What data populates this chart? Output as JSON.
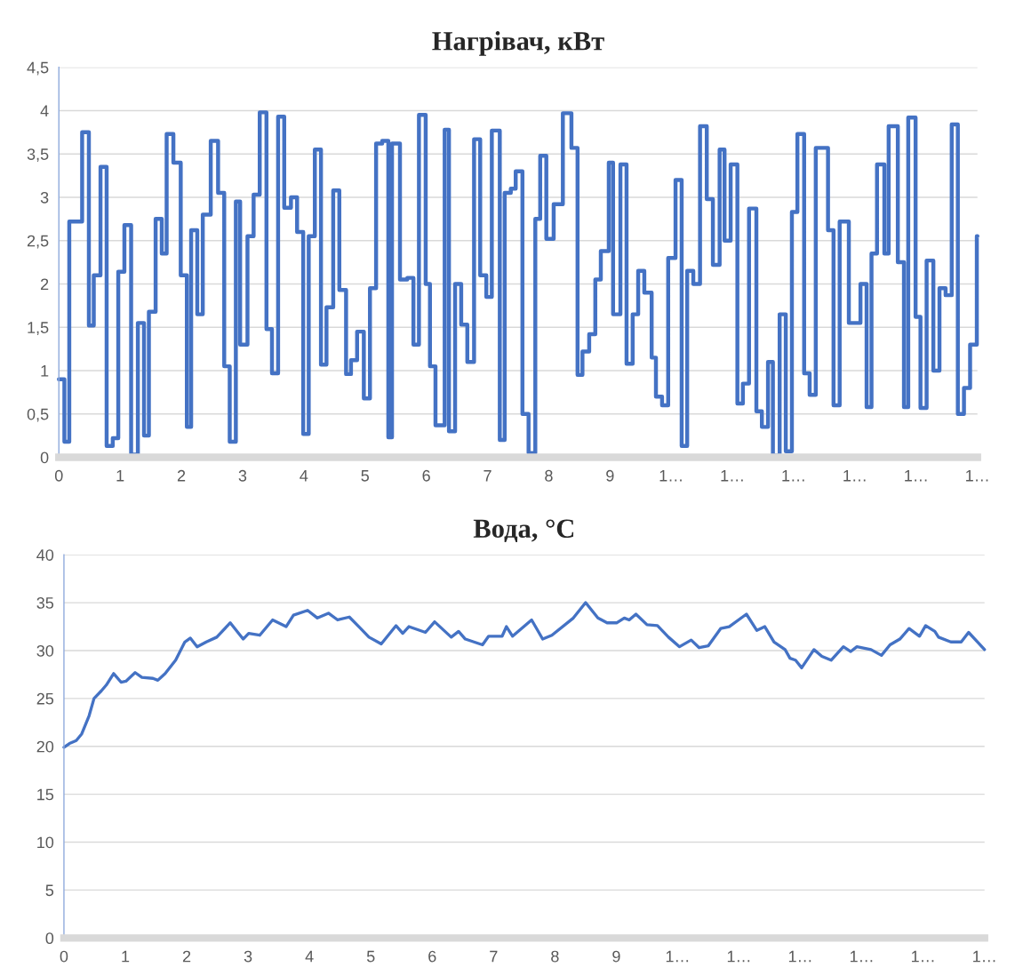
{
  "chart_data": [
    {
      "type": "step",
      "title": "Нагрівач, кВт",
      "xlim": [
        0,
        15
      ],
      "ylim": [
        0,
        4.5
      ],
      "xticks": [
        0,
        1,
        2,
        3,
        4,
        5,
        6,
        7,
        8,
        9,
        {
          "value": 10,
          "label": "1…"
        },
        {
          "value": 11,
          "label": "1…"
        },
        {
          "value": 12,
          "label": "1…"
        },
        {
          "value": 13,
          "label": "1…"
        },
        {
          "value": 14,
          "label": "1…"
        },
        {
          "value": 15,
          "label": "1…"
        }
      ],
      "yticks": [
        0,
        {
          "value": 0.5,
          "label": "0,5"
        },
        1,
        {
          "value": 1.5,
          "label": "1,5"
        },
        2,
        {
          "value": 2.5,
          "label": "2,5"
        },
        3,
        {
          "value": 3.5,
          "label": "3,5"
        },
        4,
        {
          "value": 4.5,
          "label": "4,5"
        }
      ],
      "grid": "y",
      "line_style": "solid",
      "series": [
        {
          "color": "#4472c4",
          "x": [
            0,
            0.09,
            0.17,
            0.38,
            0.49,
            0.57,
            0.68,
            0.78,
            0.88,
            0.97,
            1.07,
            1.18,
            1.29,
            1.39,
            1.47,
            1.58,
            1.68,
            1.76,
            1.87,
            1.99,
            2.09,
            2.16,
            2.26,
            2.35,
            2.48,
            2.6,
            2.7,
            2.79,
            2.89,
            2.96,
            3.08,
            3.18,
            3.28,
            3.39,
            3.48,
            3.58,
            3.68,
            3.79,
            3.89,
            3.99,
            4.08,
            4.18,
            4.28,
            4.37,
            4.48,
            4.58,
            4.69,
            4.77,
            4.87,
            4.98,
            5.08,
            5.18,
            5.28,
            5.38,
            5.44,
            5.57,
            5.69,
            5.79,
            5.88,
            5.99,
            6.06,
            6.15,
            6.3,
            6.37,
            6.47,
            6.57,
            6.67,
            6.78,
            6.88,
            6.98,
            7.07,
            7.2,
            7.28,
            7.38,
            7.46,
            7.57,
            7.67,
            7.78,
            7.86,
            7.96,
            8.08,
            8.23,
            8.37,
            8.47,
            8.55,
            8.66,
            8.76,
            8.85,
            8.98,
            9.05,
            9.17,
            9.27,
            9.37,
            9.46,
            9.56,
            9.68,
            9.75,
            9.85,
            9.95,
            10.07,
            10.17,
            10.26,
            10.36,
            10.47,
            10.58,
            10.68,
            10.79,
            10.87,
            10.97,
            11.08,
            11.17,
            11.27,
            11.39,
            11.48,
            11.58,
            11.66,
            11.77,
            11.87,
            11.97,
            12.06,
            12.17,
            12.26,
            12.36,
            12.56,
            12.65,
            12.75,
            12.9,
            13.09,
            13.19,
            13.27,
            13.36,
            13.48,
            13.55,
            13.7,
            13.8,
            13.87,
            13.99,
            14.07,
            14.17,
            14.28,
            14.38,
            14.48,
            14.58,
            14.68,
            14.78,
            14.88,
            14.99,
            15
          ],
          "values": [
            0.9,
            0.18,
            2.72,
            3.75,
            1.52,
            2.1,
            3.35,
            0.13,
            0.22,
            2.14,
            2.68,
            0.03,
            1.55,
            0.25,
            1.68,
            2.75,
            2.35,
            3.73,
            3.4,
            2.1,
            0.35,
            2.62,
            1.65,
            2.8,
            3.65,
            3.05,
            1.05,
            0.18,
            2.95,
            1.3,
            2.55,
            3.03,
            3.98,
            1.48,
            0.97,
            3.93,
            2.88,
            3.0,
            2.6,
            0.27,
            2.55,
            3.55,
            1.07,
            1.73,
            3.08,
            1.93,
            0.96,
            1.12,
            1.45,
            0.68,
            1.95,
            3.62,
            3.65,
            0.23,
            3.62,
            2.05,
            2.07,
            1.3,
            3.95,
            2.0,
            1.05,
            0.37,
            3.78,
            0.3,
            2.0,
            1.53,
            1.1,
            3.67,
            2.1,
            1.85,
            3.77,
            0.2,
            3.05,
            3.1,
            3.3,
            0.5,
            0.05,
            2.75,
            3.48,
            2.52,
            2.92,
            3.97,
            3.57,
            0.95,
            1.22,
            1.42,
            2.05,
            2.38,
            3.4,
            1.65,
            3.38,
            1.08,
            1.65,
            2.15,
            1.9,
            1.15,
            0.7,
            0.6,
            2.3,
            3.2,
            0.13,
            2.15,
            2.0,
            3.82,
            2.98,
            2.22,
            3.55,
            2.5,
            3.38,
            0.62,
            0.85,
            2.87,
            0.53,
            0.35,
            1.1,
            0.02,
            1.65,
            0.07,
            2.83,
            3.73,
            0.97,
            0.72,
            3.57,
            2.62,
            0.6,
            2.72,
            1.55,
            2.0,
            0.58,
            2.35,
            3.38,
            2.35,
            3.82,
            2.25,
            0.58,
            3.92,
            1.62,
            0.57,
            2.27,
            1.0,
            1.95,
            1.87,
            3.84,
            0.5,
            0.8,
            1.3,
            2.55,
            2.55
          ]
        }
      ]
    },
    {
      "type": "line",
      "title": "Вода, °C",
      "xlim": [
        0,
        15
      ],
      "ylim": [
        0,
        40
      ],
      "xticks": [
        0,
        1,
        2,
        3,
        4,
        5,
        6,
        7,
        8,
        9,
        {
          "value": 10,
          "label": "1…"
        },
        {
          "value": 11,
          "label": "1…"
        },
        {
          "value": 12,
          "label": "1…"
        },
        {
          "value": 13,
          "label": "1…"
        },
        {
          "value": 14,
          "label": "1…"
        },
        {
          "value": 15,
          "label": "1…"
        }
      ],
      "yticks": [
        0,
        5,
        10,
        15,
        20,
        25,
        30,
        35,
        40
      ],
      "grid": "y",
      "line_style": "solid",
      "series": [
        {
          "color": "#4472c4",
          "x": [
            0,
            0.09,
            0.2,
            0.29,
            0.41,
            0.49,
            0.61,
            0.69,
            0.81,
            0.93,
            1.01,
            1.16,
            1.27,
            1.45,
            1.53,
            1.65,
            1.82,
            1.97,
            2.06,
            2.17,
            2.32,
            2.49,
            2.71,
            2.92,
            3.01,
            3.19,
            3.4,
            3.62,
            3.74,
            3.97,
            4.13,
            4.31,
            4.46,
            4.65,
            4.82,
            4.97,
            5.17,
            5.41,
            5.52,
            5.62,
            5.89,
            6.04,
            6.31,
            6.43,
            6.54,
            6.82,
            6.92,
            7.14,
            7.21,
            7.31,
            7.62,
            7.8,
            7.95,
            8.3,
            8.5,
            8.7,
            8.85,
            9.01,
            9.13,
            9.21,
            9.32,
            9.5,
            9.67,
            9.85,
            10.03,
            10.22,
            10.35,
            10.5,
            10.7,
            10.84,
            11.12,
            11.29,
            11.42,
            11.57,
            11.75,
            11.83,
            11.92,
            12.02,
            12.22,
            12.35,
            12.5,
            12.7,
            12.82,
            12.92,
            13.15,
            13.32,
            13.46,
            13.62,
            13.77,
            13.94,
            14.04,
            14.19,
            14.25,
            14.45,
            14.62,
            14.74,
            14.9,
            15
          ],
          "values": [
            19.9,
            20.3,
            20.6,
            21.3,
            23.2,
            25.0,
            25.8,
            26.4,
            27.6,
            26.7,
            26.8,
            27.7,
            27.2,
            27.1,
            26.9,
            27.6,
            29.0,
            30.9,
            31.3,
            30.4,
            30.9,
            31.4,
            32.9,
            31.2,
            31.8,
            31.6,
            33.2,
            32.5,
            33.7,
            34.2,
            33.4,
            33.9,
            33.2,
            33.5,
            32.4,
            31.4,
            30.7,
            32.6,
            31.8,
            32.5,
            31.9,
            33.0,
            31.4,
            32.0,
            31.2,
            30.6,
            31.5,
            31.5,
            32.5,
            31.5,
            33.2,
            31.2,
            31.6,
            33.4,
            35.0,
            33.4,
            32.9,
            32.9,
            33.4,
            33.2,
            33.8,
            32.7,
            32.6,
            31.4,
            30.4,
            31.1,
            30.3,
            30.5,
            32.3,
            32.5,
            33.8,
            32.1,
            32.5,
            30.9,
            30.1,
            29.2,
            29.0,
            28.2,
            30.1,
            29.4,
            29.0,
            30.4,
            29.9,
            30.4,
            30.1,
            29.5,
            30.6,
            31.2,
            32.3,
            31.5,
            32.6,
            32.0,
            31.4,
            30.9,
            30.9,
            31.9,
            30.8,
            30.1
          ]
        }
      ]
    }
  ]
}
